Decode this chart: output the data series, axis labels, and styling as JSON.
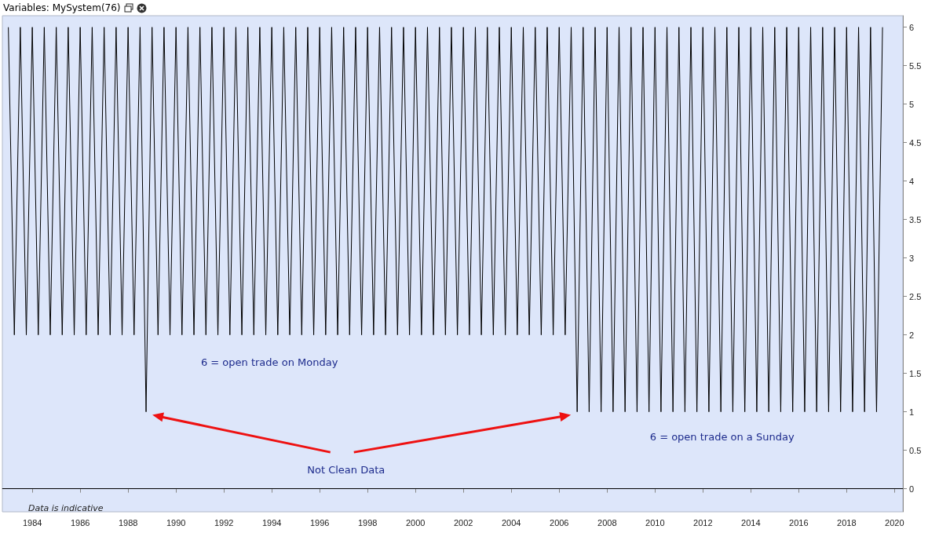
{
  "chart_data": {
    "type": "line",
    "title": "Variables: MySystem(76)",
    "x": [
      1983,
      1983.25,
      1983.5,
      1983.75,
      1984,
      1984.25,
      1984.5,
      1984.75,
      1985,
      1985.25,
      1985.5,
      1985.75,
      1986,
      1986.25,
      1986.5,
      1986.75,
      1987,
      1987.25,
      1987.5,
      1987.75,
      1988,
      1988.25,
      1988.5,
      1988.75,
      1989,
      1989.25,
      1989.5,
      1989.75,
      1990,
      1990.25,
      1990.5,
      1990.75,
      1991,
      1991.25,
      1991.5,
      1991.75,
      1992,
      1992.25,
      1992.5,
      1992.75,
      1993,
      1993.25,
      1993.5,
      1993.75,
      1994,
      1994.25,
      1994.5,
      1994.75,
      1995,
      1995.25,
      1995.5,
      1995.75,
      1996,
      1996.25,
      1996.5,
      1996.75,
      1997,
      1997.25,
      1997.5,
      1997.75,
      1998,
      1998.25,
      1998.5,
      1998.75,
      1999,
      1999.25,
      1999.5,
      1999.75,
      2000,
      2000.25,
      2000.5,
      2000.75,
      2001,
      2001.25,
      2001.5,
      2001.75,
      2002,
      2002.25,
      2002.5,
      2002.75,
      2003,
      2003.25,
      2003.5,
      2003.75,
      2004,
      2004.25,
      2004.5,
      2004.75,
      2005,
      2005.25,
      2005.5,
      2005.75,
      2006,
      2006.25,
      2006.5,
      2006.75,
      2007,
      2007.25,
      2007.5,
      2007.75,
      2008,
      2008.25,
      2008.5,
      2008.75,
      2009,
      2009.25,
      2009.5,
      2009.75,
      2010,
      2010.25,
      2010.5,
      2010.75,
      2011,
      2011.25,
      2011.5,
      2011.75,
      2012,
      2012.25,
      2012.5,
      2012.75,
      2013,
      2013.25,
      2013.5,
      2013.75,
      2014,
      2014.25,
      2014.5,
      2014.75,
      2015,
      2015.25,
      2015.5,
      2015.75,
      2016,
      2016.25,
      2016.5,
      2016.75,
      2017,
      2017.25,
      2017.5,
      2017.75,
      2018,
      2018.25,
      2018.5,
      2018.75,
      2019,
      2019.25,
      2019.5
    ],
    "series": [
      {
        "color": "#000000",
        "values": [
          6,
          2,
          6,
          2,
          6,
          2,
          6,
          2,
          6,
          2,
          6,
          2,
          6,
          2,
          6,
          2,
          6,
          2,
          6,
          2,
          6,
          2,
          6,
          1,
          6,
          2,
          6,
          2,
          6,
          2,
          6,
          2,
          6,
          2,
          6,
          2,
          6,
          2,
          6,
          2,
          6,
          2,
          6,
          2,
          6,
          2,
          6,
          2,
          6,
          2,
          6,
          2,
          6,
          2,
          6,
          2,
          6,
          2,
          6,
          2,
          6,
          2,
          6,
          2,
          6,
          2,
          6,
          2,
          6,
          2,
          6,
          2,
          6,
          2,
          6,
          2,
          6,
          2,
          6,
          2,
          6,
          2,
          6,
          2,
          6,
          2,
          6,
          2,
          6,
          2,
          6,
          2,
          6,
          2,
          6,
          1,
          6,
          1,
          6,
          1,
          6,
          1,
          6,
          1,
          6,
          1,
          6,
          1,
          6,
          1,
          6,
          1,
          6,
          1,
          6,
          1,
          6,
          1,
          6,
          1,
          6,
          1,
          6,
          1,
          6,
          1,
          6,
          1,
          6,
          1,
          6,
          1,
          6,
          1,
          6,
          1,
          6,
          1,
          6,
          1,
          6,
          1,
          6,
          1,
          6,
          1,
          6
        ]
      }
    ],
    "xlim": [
      1982.75,
      2020.35
    ],
    "xticks": [
      1984,
      1986,
      1988,
      1990,
      1992,
      1994,
      1996,
      1998,
      2000,
      2002,
      2004,
      2006,
      2008,
      2010,
      2012,
      2014,
      2016,
      2018,
      2020
    ],
    "ylim": [
      -0.3,
      6.15
    ],
    "yticks": [
      0,
      0.5,
      1,
      1.5,
      2,
      2.5,
      3,
      3.5,
      4,
      4.5,
      5,
      5.5,
      6
    ],
    "ref_lines": [
      {
        "axis": "y",
        "value": 0,
        "color": "#000000"
      }
    ],
    "annotations": [
      "6 = open trade on Monday",
      "6 = open trade on a Sunday",
      "Not Clean Data",
      "Data is indicative"
    ],
    "grid": false
  }
}
